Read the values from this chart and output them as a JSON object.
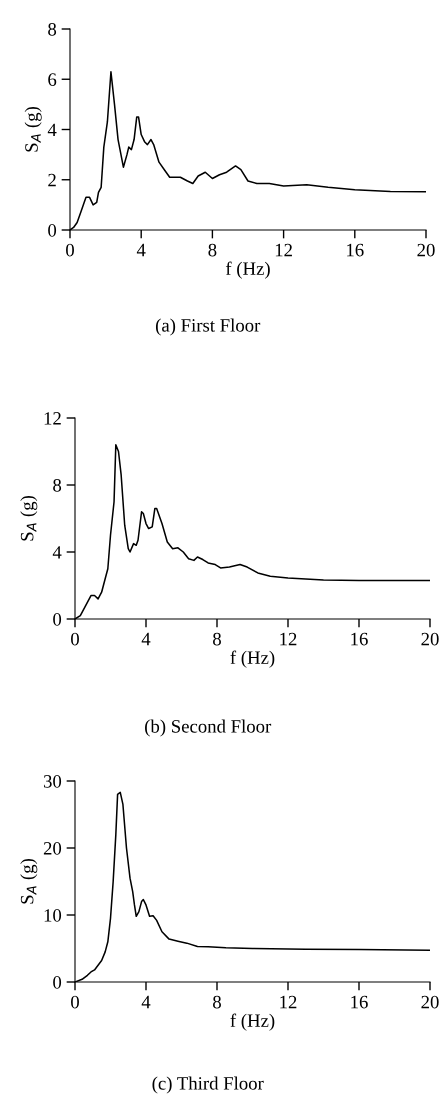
{
  "chart_data": [
    {
      "type": "line",
      "title": "(a) First Floor",
      "xlabel": "f (Hz)",
      "ylabel": "S$_{A}$ (g)",
      "xlim": [
        0,
        20
      ],
      "ylim": [
        0,
        8
      ],
      "xticks": [
        0,
        4,
        8,
        12,
        16,
        20
      ],
      "yticks": [
        0,
        2,
        4,
        6,
        8
      ],
      "x": [
        0,
        0.2,
        0.4,
        0.6,
        0.8,
        0.9,
        1.1,
        1.3,
        1.5,
        1.6,
        1.75,
        1.9,
        2.1,
        2.3,
        2.5,
        2.7,
        3.0,
        3.2,
        3.3,
        3.45,
        3.6,
        3.75,
        3.85,
        4.0,
        4.2,
        4.35,
        4.55,
        4.7,
        5.0,
        5.3,
        5.6,
        6.2,
        6.6,
        6.9,
        7.2,
        7.6,
        8.0,
        8.4,
        8.8,
        9.3,
        9.6,
        10.0,
        10.5,
        11.2,
        12.0,
        13.3,
        14.5,
        16.0,
        18,
        20
      ],
      "series": [
        {
          "color": "#000000",
          "values": [
            0,
            0.1,
            0.3,
            0.7,
            1.1,
            1.3,
            1.3,
            1.0,
            1.1,
            1.5,
            1.7,
            3.3,
            4.3,
            6.3,
            5.0,
            3.6,
            2.5,
            3.0,
            3.3,
            3.2,
            3.6,
            4.5,
            4.5,
            3.8,
            3.5,
            3.4,
            3.6,
            3.4,
            2.7,
            2.4,
            2.1,
            2.1,
            1.95,
            1.85,
            2.15,
            2.3,
            2.05,
            2.2,
            2.3,
            2.55,
            2.4,
            1.95,
            1.85,
            1.85,
            1.75,
            1.8,
            1.7,
            1.6,
            1.53,
            1.52
          ]
        }
      ]
    },
    {
      "type": "line",
      "title": "(b) Second Floor",
      "xlabel": "f (Hz)",
      "ylabel": "S$_{A}$ (g)",
      "xlim": [
        0,
        20
      ],
      "ylim": [
        0,
        12
      ],
      "xticks": [
        0,
        4,
        8,
        12,
        16,
        20
      ],
      "yticks": [
        0,
        4,
        8,
        12
      ],
      "x": [
        0,
        0.3,
        0.6,
        0.9,
        1.1,
        1.3,
        1.5,
        1.7,
        1.85,
        2.0,
        2.2,
        2.3,
        2.45,
        2.6,
        2.8,
        3.0,
        3.1,
        3.3,
        3.45,
        3.55,
        3.75,
        3.85,
        4.0,
        4.15,
        4.35,
        4.5,
        4.6,
        4.9,
        5.2,
        5.5,
        5.8,
        6.1,
        6.4,
        6.7,
        6.9,
        7.2,
        7.5,
        7.9,
        8.2,
        8.7,
        9.3,
        9.7,
        10.3,
        11,
        12,
        14,
        16,
        20
      ],
      "series": [
        {
          "color": "#000000",
          "values": [
            0,
            0.2,
            0.8,
            1.4,
            1.4,
            1.2,
            1.6,
            2.4,
            3.0,
            5.0,
            7.0,
            10.4,
            10.0,
            8.6,
            5.6,
            4.2,
            4.0,
            4.5,
            4.4,
            4.7,
            6.4,
            6.3,
            5.7,
            5.4,
            5.5,
            6.6,
            6.6,
            5.7,
            4.6,
            4.2,
            4.25,
            4.0,
            3.6,
            3.5,
            3.7,
            3.55,
            3.35,
            3.25,
            3.05,
            3.1,
            3.25,
            3.1,
            2.75,
            2.55,
            2.45,
            2.33,
            2.3,
            2.3
          ]
        }
      ]
    },
    {
      "type": "line",
      "title": "(c) Third Floor",
      "xlabel": "f (Hz)",
      "ylabel": "S$_{A}$ (g)",
      "xlim": [
        0,
        20
      ],
      "ylim": [
        0,
        30
      ],
      "xticks": [
        0,
        4,
        8,
        12,
        16,
        20
      ],
      "yticks": [
        0,
        10,
        20,
        30
      ],
      "x": [
        0,
        0.4,
        0.7,
        0.9,
        1.1,
        1.3,
        1.5,
        1.7,
        1.85,
        2.0,
        2.15,
        2.3,
        2.4,
        2.55,
        2.7,
        2.9,
        3.1,
        3.25,
        3.35,
        3.45,
        3.6,
        3.75,
        3.85,
        4.0,
        4.2,
        4.4,
        4.6,
        4.9,
        5.3,
        5.8,
        6.3,
        6.9,
        7.5,
        8.5,
        10,
        13,
        16,
        20
      ],
      "series": [
        {
          "color": "#000000",
          "values": [
            0,
            0.4,
            1.0,
            1.5,
            1.8,
            2.5,
            3.2,
            4.5,
            6.0,
            9.5,
            15,
            22,
            28,
            28.3,
            26.5,
            20,
            15.5,
            13.5,
            11.5,
            9.8,
            10.5,
            12.0,
            12.3,
            11.5,
            9.8,
            9.9,
            9.2,
            7.5,
            6.4,
            6.1,
            5.8,
            5.3,
            5.25,
            5.1,
            5.0,
            4.9,
            4.85,
            4.75
          ]
        }
      ]
    }
  ]
}
